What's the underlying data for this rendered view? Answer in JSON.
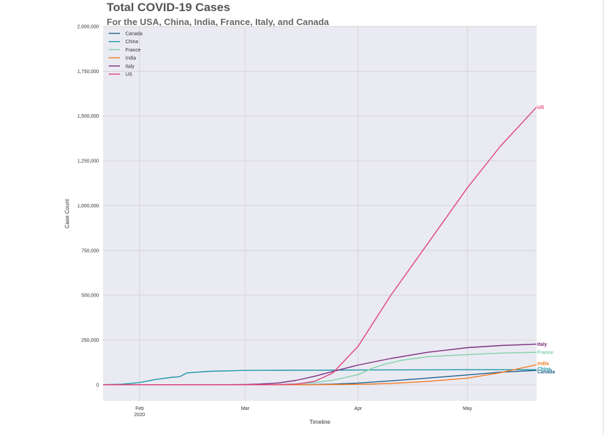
{
  "chart_data": {
    "type": "line",
    "title": "Total COVID-19 Cases",
    "subtitle": "For the USA, China, India, France, Italy, and Canada",
    "xlabel": "Timeline",
    "ylabel": "Case Count",
    "x_axis_type": "date",
    "xlim": [
      "2020-01-22",
      "2020-05-20"
    ],
    "ylim": [
      -90000,
      2000000
    ],
    "x_ticks": [
      {
        "date": "2020-02-01",
        "label": "Feb",
        "sublabel": "2020"
      },
      {
        "date": "2020-03-01",
        "label": "Mar",
        "sublabel": ""
      },
      {
        "date": "2020-04-01",
        "label": "Apr",
        "sublabel": ""
      },
      {
        "date": "2020-05-01",
        "label": "May",
        "sublabel": ""
      }
    ],
    "y_ticks": [
      {
        "value": 0,
        "label": "0"
      },
      {
        "value": 250000,
        "label": "250,000"
      },
      {
        "value": 500000,
        "label": "500,000"
      },
      {
        "value": 750000,
        "label": "750,000"
      },
      {
        "value": 1000000,
        "label": "1,000,000"
      },
      {
        "value": 1250000,
        "label": "1,250,000"
      },
      {
        "value": 1500000,
        "label": "1,500,000"
      },
      {
        "value": 1750000,
        "label": "1,750,000"
      },
      {
        "value": 2000000,
        "label": "2,000,000"
      }
    ],
    "grid": true,
    "background": "#eaeaf2",
    "legend_position": "top-left",
    "series": [
      {
        "name": "Canada",
        "end_label": "Canada",
        "color": "#1f5f8b",
        "points": [
          [
            "2020-01-22",
            0
          ],
          [
            "2020-03-01",
            20
          ],
          [
            "2020-03-15",
            300
          ],
          [
            "2020-03-25",
            3500
          ],
          [
            "2020-04-01",
            9600
          ],
          [
            "2020-04-10",
            22000
          ],
          [
            "2020-04-20",
            37000
          ],
          [
            "2020-05-01",
            55000
          ],
          [
            "2020-05-10",
            70000
          ],
          [
            "2020-05-20",
            80000
          ]
        ]
      },
      {
        "name": "China",
        "end_label": "China",
        "color": "#1b96a8",
        "points": [
          [
            "2020-01-22",
            550
          ],
          [
            "2020-01-27",
            2900
          ],
          [
            "2020-02-01",
            12000
          ],
          [
            "2020-02-05",
            28000
          ],
          [
            "2020-02-10",
            42000
          ],
          [
            "2020-02-12",
            45000
          ],
          [
            "2020-02-14",
            66000
          ],
          [
            "2020-02-20",
            75000
          ],
          [
            "2020-03-01",
            80000
          ],
          [
            "2020-03-10",
            81000
          ],
          [
            "2020-03-20",
            81300
          ],
          [
            "2020-04-01",
            82300
          ],
          [
            "2020-04-15",
            83300
          ],
          [
            "2020-05-01",
            83900
          ],
          [
            "2020-05-20",
            84000
          ]
        ]
      },
      {
        "name": "France",
        "end_label": "France",
        "color": "#7fd1a8",
        "points": [
          [
            "2020-01-22",
            0
          ],
          [
            "2020-03-01",
            130
          ],
          [
            "2020-03-10",
            1800
          ],
          [
            "2020-03-15",
            5400
          ],
          [
            "2020-03-20",
            12600
          ],
          [
            "2020-03-25",
            25000
          ],
          [
            "2020-04-01",
            57000
          ],
          [
            "2020-04-05",
            93000
          ],
          [
            "2020-04-08",
            113000
          ],
          [
            "2020-04-13",
            137000
          ],
          [
            "2020-04-20",
            156000
          ],
          [
            "2020-04-25",
            162000
          ],
          [
            "2020-05-01",
            168000
          ],
          [
            "2020-05-10",
            177000
          ],
          [
            "2020-05-20",
            181000
          ]
        ]
      },
      {
        "name": "India",
        "end_label": "India",
        "color": "#f47920",
        "points": [
          [
            "2020-01-22",
            0
          ],
          [
            "2020-03-15",
            110
          ],
          [
            "2020-04-01",
            1900
          ],
          [
            "2020-04-10",
            7600
          ],
          [
            "2020-04-20",
            18500
          ],
          [
            "2020-05-01",
            37000
          ],
          [
            "2020-05-10",
            67000
          ],
          [
            "2020-05-20",
            112000
          ]
        ]
      },
      {
        "name": "Italy",
        "end_label": "Italy",
        "color": "#7b2c7b",
        "points": [
          [
            "2020-01-22",
            0
          ],
          [
            "2020-02-21",
            20
          ],
          [
            "2020-03-01",
            1700
          ],
          [
            "2020-03-05",
            3900
          ],
          [
            "2020-03-10",
            10000
          ],
          [
            "2020-03-15",
            24700
          ],
          [
            "2020-03-20",
            47000
          ],
          [
            "2020-03-25",
            74000
          ],
          [
            "2020-04-01",
            110000
          ],
          [
            "2020-04-10",
            147000
          ],
          [
            "2020-04-20",
            181000
          ],
          [
            "2020-05-01",
            207000
          ],
          [
            "2020-05-10",
            219000
          ],
          [
            "2020-05-20",
            227000
          ]
        ]
      },
      {
        "name": "US",
        "end_label": "US",
        "color": "#e0407b",
        "points": [
          [
            "2020-01-22",
            1
          ],
          [
            "2020-03-01",
            75
          ],
          [
            "2020-03-10",
            1000
          ],
          [
            "2020-03-15",
            3500
          ],
          [
            "2020-03-20",
            19000
          ],
          [
            "2020-03-25",
            65000
          ],
          [
            "2020-04-01",
            215000
          ],
          [
            "2020-04-10",
            500000
          ],
          [
            "2020-04-20",
            785000
          ],
          [
            "2020-05-01",
            1100000
          ],
          [
            "2020-05-10",
            1330000
          ],
          [
            "2020-05-20",
            1550000
          ]
        ]
      }
    ]
  }
}
